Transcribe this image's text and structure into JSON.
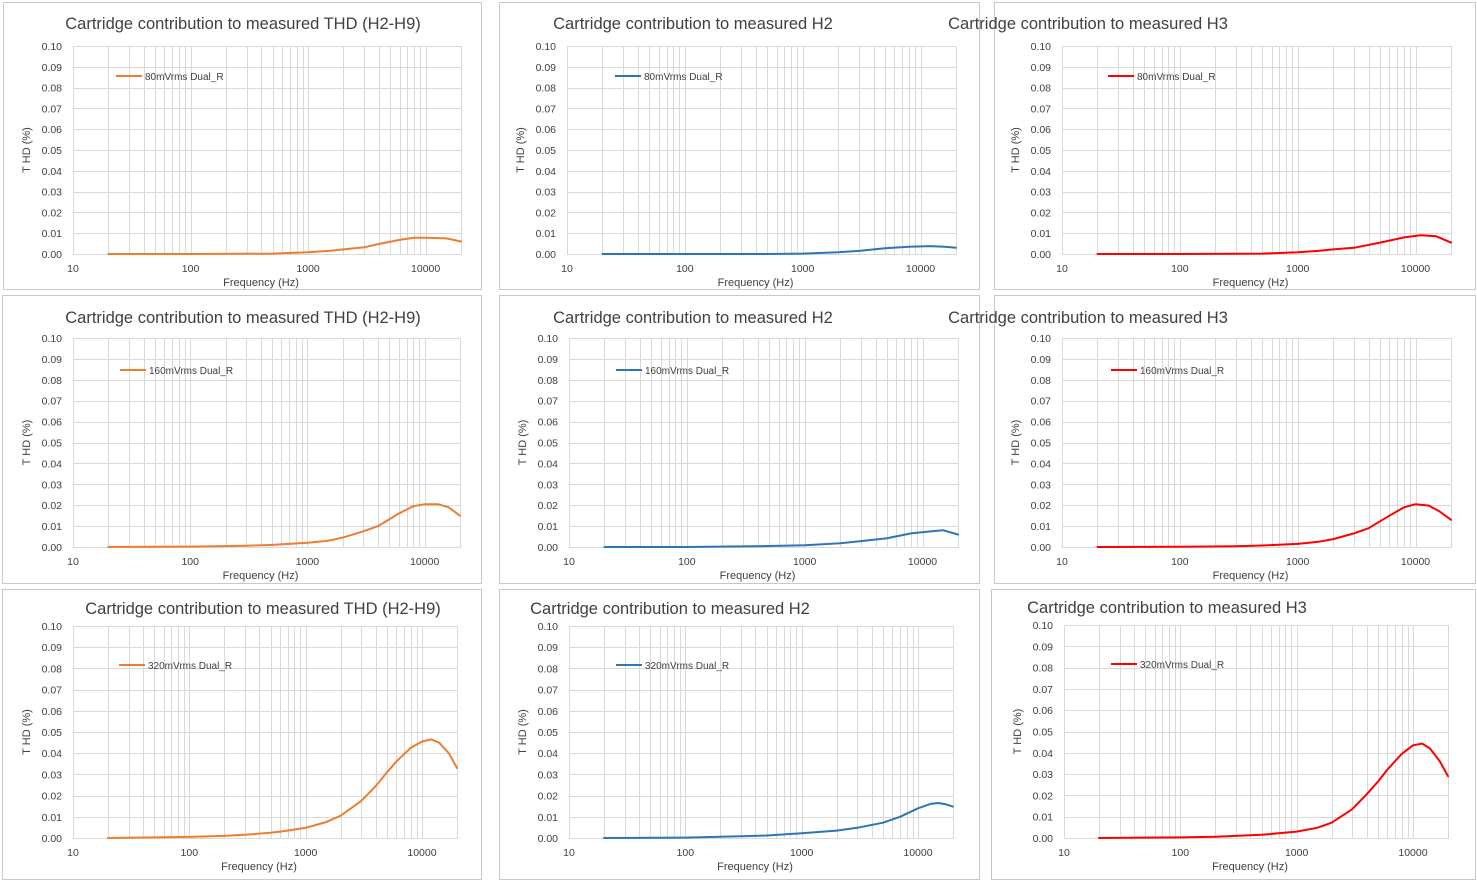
{
  "chart_data": [
    {
      "type": "line",
      "title": "Cartridge contribution to measured THD (H2-H9)",
      "xlabel": "Frequency (Hz)",
      "ylabel": "T HD (%)",
      "xscale": "log",
      "xlim": [
        10,
        20000
      ],
      "ylim": [
        0,
        0.1
      ],
      "x_ticks": [
        "10",
        "100",
        "1000",
        "10000"
      ],
      "y_ticks": [
        "0.00",
        "0.01",
        "0.02",
        "0.03",
        "0.04",
        "0.05",
        "0.06",
        "0.07",
        "0.08",
        "0.09",
        "0.10"
      ],
      "legend_position": "top-left",
      "grid": true,
      "color": "#ED7D31",
      "series": [
        {
          "name": "80mVrms Dual_R",
          "x": [
            20,
            100,
            500,
            1000,
            1500,
            2000,
            3000,
            4000,
            6000,
            8000,
            10000,
            15000,
            20000
          ],
          "values": [
            0.0,
            0.0,
            0.0002,
            0.0008,
            0.0015,
            0.0022,
            0.0032,
            0.0048,
            0.0068,
            0.0078,
            0.0078,
            0.0075,
            0.006
          ]
        }
      ]
    },
    {
      "type": "line",
      "title": "Cartridge contribution to measured H2",
      "xlabel": "Frequency (Hz)",
      "ylabel": "T HD (%)",
      "xscale": "log",
      "xlim": [
        10,
        20000
      ],
      "ylim": [
        0,
        0.1
      ],
      "x_ticks": [
        "10",
        "100",
        "1000",
        "10000"
      ],
      "y_ticks": [
        "0.00",
        "0.01",
        "0.02",
        "0.03",
        "0.04",
        "0.05",
        "0.06",
        "0.07",
        "0.08",
        "0.09",
        "0.10"
      ],
      "legend_position": "top-left",
      "grid": true,
      "color": "#2E75B6",
      "series": [
        {
          "name": "80mVrms Dual_R",
          "x": [
            20,
            100,
            500,
            1000,
            2000,
            3000,
            5000,
            8000,
            12000,
            16000,
            20000
          ],
          "values": [
            0.0,
            0.0,
            0.0,
            0.0002,
            0.0008,
            0.0015,
            0.0028,
            0.0035,
            0.0038,
            0.0035,
            0.003
          ]
        }
      ]
    },
    {
      "type": "line",
      "title": "Cartridge contribution to measured H3",
      "xlabel": "Frequency (Hz)",
      "ylabel": "T HD (%)",
      "xscale": "log",
      "xlim": [
        10,
        20000
      ],
      "ylim": [
        0,
        0.1
      ],
      "x_ticks": [
        "10",
        "100",
        "1000",
        "10000"
      ],
      "y_ticks": [
        "0.00",
        "0.01",
        "0.02",
        "0.03",
        "0.04",
        "0.05",
        "0.06",
        "0.07",
        "0.08",
        "0.09",
        "0.10"
      ],
      "legend_position": "top-left",
      "grid": true,
      "color": "#FF0000",
      "series": [
        {
          "name": "80mVrms Dual_R",
          "x": [
            20,
            100,
            500,
            1000,
            1500,
            2000,
            3000,
            5000,
            8000,
            11000,
            15000,
            20000
          ],
          "values": [
            0.0,
            0.0,
            0.0002,
            0.0008,
            0.0015,
            0.0022,
            0.003,
            0.0055,
            0.008,
            0.009,
            0.0085,
            0.0055
          ]
        }
      ]
    },
    {
      "type": "line",
      "title": "Cartridge contribution to measured THD (H2-H9)",
      "xlabel": "Frequency (Hz)",
      "ylabel": "T HD (%)",
      "xscale": "log",
      "xlim": [
        10,
        20000
      ],
      "ylim": [
        0,
        0.1
      ],
      "x_ticks": [
        "10",
        "100",
        "1000",
        "10000"
      ],
      "y_ticks": [
        "0.00",
        "0.01",
        "0.02",
        "0.03",
        "0.04",
        "0.05",
        "0.06",
        "0.07",
        "0.08",
        "0.09",
        "0.10"
      ],
      "legend_position": "top-left",
      "grid": true,
      "color": "#ED7D31",
      "series": [
        {
          "name": "160mVrms Dual_R",
          "x": [
            20,
            100,
            300,
            500,
            1000,
            1500,
            2000,
            3000,
            4000,
            6000,
            8000,
            10000,
            13000,
            16000,
            20000
          ],
          "values": [
            0.0,
            0.0002,
            0.0006,
            0.001,
            0.002,
            0.003,
            0.0045,
            0.0075,
            0.01,
            0.016,
            0.0195,
            0.0205,
            0.0205,
            0.019,
            0.015
          ]
        }
      ]
    },
    {
      "type": "line",
      "title": "Cartridge contribution to measured H2",
      "xlabel": "Frequency (Hz)",
      "ylabel": "T HD (%)",
      "xscale": "log",
      "xlim": [
        10,
        20000
      ],
      "ylim": [
        0,
        0.1
      ],
      "x_ticks": [
        "10",
        "100",
        "1000",
        "10000"
      ],
      "y_ticks": [
        "0.00",
        "0.01",
        "0.02",
        "0.03",
        "0.04",
        "0.05",
        "0.06",
        "0.07",
        "0.08",
        "0.09",
        "0.10"
      ],
      "legend_position": "top-left",
      "grid": true,
      "color": "#2E75B6",
      "series": [
        {
          "name": "160mVrms Dual_R",
          "x": [
            20,
            100,
            500,
            1000,
            2000,
            3000,
            5000,
            8000,
            12000,
            15000,
            20000
          ],
          "values": [
            0.0,
            0.0,
            0.0005,
            0.0008,
            0.0018,
            0.0028,
            0.0042,
            0.0065,
            0.0075,
            0.008,
            0.006
          ]
        }
      ]
    },
    {
      "type": "line",
      "title": "Cartridge contribution to measured H3",
      "xlabel": "Frequency (Hz)",
      "ylabel": "T HD (%)",
      "xscale": "log",
      "xlim": [
        10,
        20000
      ],
      "ylim": [
        0,
        0.1
      ],
      "x_ticks": [
        "10",
        "100",
        "1000",
        "10000"
      ],
      "y_ticks": [
        "0.00",
        "0.01",
        "0.02",
        "0.03",
        "0.04",
        "0.05",
        "0.06",
        "0.07",
        "0.08",
        "0.09",
        "0.10"
      ],
      "legend_position": "top-left",
      "grid": true,
      "color": "#FF0000",
      "series": [
        {
          "name": "160mVrms Dual_R",
          "x": [
            20,
            100,
            300,
            500,
            1000,
            1500,
            2000,
            3000,
            4000,
            6000,
            8000,
            10000,
            13000,
            16000,
            20000
          ],
          "values": [
            0.0,
            0.0001,
            0.0004,
            0.0007,
            0.0015,
            0.0025,
            0.0038,
            0.0065,
            0.009,
            0.015,
            0.019,
            0.0205,
            0.0198,
            0.017,
            0.013
          ]
        }
      ]
    },
    {
      "type": "line",
      "title": "Cartridge contribution to measured THD (H2-H9)",
      "xlabel": "Frequency (Hz)",
      "ylabel": "T HD (%)",
      "xscale": "log",
      "xlim": [
        10,
        20000
      ],
      "ylim": [
        0,
        0.1
      ],
      "x_ticks": [
        "10",
        "100",
        "1000",
        "10000"
      ],
      "y_ticks": [
        "0.00",
        "0.01",
        "0.02",
        "0.03",
        "0.04",
        "0.05",
        "0.06",
        "0.07",
        "0.08",
        "0.09",
        "0.10"
      ],
      "legend_position": "top-left",
      "grid": true,
      "color": "#ED7D31",
      "series": [
        {
          "name": "320mVrms Dual_R",
          "x": [
            20,
            100,
            200,
            300,
            500,
            700,
            1000,
            1500,
            2000,
            3000,
            4000,
            5000,
            6000,
            8000,
            10000,
            12000,
            14000,
            17000,
            20000
          ],
          "values": [
            0.0,
            0.0005,
            0.001,
            0.0015,
            0.0025,
            0.0035,
            0.0048,
            0.0075,
            0.0105,
            0.0175,
            0.0245,
            0.031,
            0.036,
            0.0425,
            0.0455,
            0.0465,
            0.045,
            0.04,
            0.033
          ]
        }
      ]
    },
    {
      "type": "line",
      "title": "Cartridge contribution to measured H2",
      "xlabel": "Frequency (Hz)",
      "ylabel": "T HD (%)",
      "xscale": "log",
      "xlim": [
        10,
        20000
      ],
      "ylim": [
        0,
        0.1
      ],
      "x_ticks": [
        "10",
        "100",
        "1000",
        "10000"
      ],
      "y_ticks": [
        "0.00",
        "0.01",
        "0.02",
        "0.03",
        "0.04",
        "0.05",
        "0.06",
        "0.07",
        "0.08",
        "0.09",
        "0.10"
      ],
      "legend_position": "top-left",
      "grid": true,
      "color": "#2E75B6",
      "series": [
        {
          "name": "320mVrms Dual_R",
          "x": [
            20,
            100,
            300,
            500,
            1000,
            2000,
            3000,
            5000,
            7000,
            10000,
            13000,
            15000,
            17000,
            20000
          ],
          "values": [
            0.0,
            0.0002,
            0.0008,
            0.0012,
            0.0022,
            0.0035,
            0.0048,
            0.0072,
            0.01,
            0.014,
            0.0162,
            0.0165,
            0.016,
            0.0148
          ]
        }
      ]
    },
    {
      "type": "line",
      "title": "Cartridge contribution to measured H3",
      "xlabel": "Frequency (Hz)",
      "ylabel": "T HD (%)",
      "xscale": "log",
      "xlim": [
        10,
        20000
      ],
      "ylim": [
        0,
        0.1
      ],
      "x_ticks": [
        "10",
        "100",
        "1000",
        "10000"
      ],
      "y_ticks": [
        "0.00",
        "0.01",
        "0.02",
        "0.03",
        "0.04",
        "0.05",
        "0.06",
        "0.07",
        "0.08",
        "0.09",
        "0.10"
      ],
      "legend_position": "top-left",
      "grid": true,
      "color": "#FF0000",
      "series": [
        {
          "name": "320mVrms Dual_R",
          "x": [
            20,
            100,
            200,
            300,
            500,
            700,
            1000,
            1500,
            2000,
            3000,
            4000,
            5000,
            6000,
            8000,
            10000,
            12000,
            14000,
            17000,
            20000
          ],
          "values": [
            0.0,
            0.0003,
            0.0006,
            0.001,
            0.0015,
            0.0022,
            0.003,
            0.0048,
            0.0072,
            0.0135,
            0.0205,
            0.0265,
            0.032,
            0.0395,
            0.0435,
            0.0443,
            0.042,
            0.036,
            0.029
          ]
        }
      ]
    }
  ]
}
